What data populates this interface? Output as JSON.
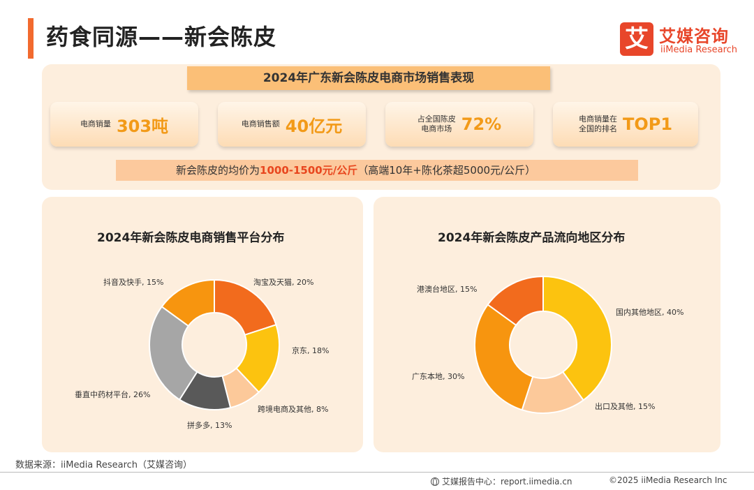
{
  "page": {
    "title": "药食同源——新会陈皮"
  },
  "logo": {
    "mark": "艾",
    "name_cn": "艾媒咨询",
    "name_en": "iiMedia Research"
  },
  "summary": {
    "ribbon": "2024年广东新会陈皮电商市场销售表现",
    "stats": [
      {
        "label": "电商销量",
        "value": "303吨"
      },
      {
        "label": "电商销售额",
        "value": "40亿元"
      },
      {
        "label_line1": "占全国陈皮",
        "label_line2": "电商市场",
        "value": "72%"
      },
      {
        "label_line1": "电商销量在",
        "label_line2": "全国的排名",
        "value": "TOP1"
      }
    ],
    "price_prefix": "新会陈皮的均价为",
    "price_highlight": "1000-1500元/公斤",
    "price_suffix": "（高端10年+陈化茶超5000元/公斤）"
  },
  "chart_data": [
    {
      "type": "pie",
      "style": "donut",
      "title": "2024年新会陈皮电商销售平台分布",
      "categories": [
        "淘宝及天猫",
        "京东",
        "跨境电商及其他",
        "拼多多",
        "垂直中药材平台",
        "抖音及快手"
      ],
      "values": [
        20,
        18,
        8,
        13,
        26,
        15
      ],
      "labels": [
        "淘宝及天猫, 20%",
        "京东, 18%",
        "跨境电商及其他, 8%",
        "拼多多, 13%",
        "垂直中药材平台, 26%",
        "抖音及快手, 15%"
      ],
      "colors": [
        "#f26b1d",
        "#fcc30f",
        "#fcc99a",
        "#595959",
        "#a6a6a6",
        "#f7950f"
      ],
      "unit": "%"
    },
    {
      "type": "pie",
      "style": "donut",
      "title": "2024年新会陈皮产品流向地区分布",
      "categories": [
        "国内其他地区",
        "出口及其他",
        "广东本地",
        "港澳台地区"
      ],
      "values": [
        40,
        15,
        30,
        15
      ],
      "labels": [
        "国内其他地区, 40%",
        "出口及其他, 15%",
        "广东本地, 30%",
        "港澳台地区, 15%"
      ],
      "colors": [
        "#fcc30f",
        "#fcc99a",
        "#f7950f",
        "#f26b1d"
      ],
      "unit": "%"
    }
  ],
  "footer": {
    "source": "数据来源：iiMedia Research（艾媒咨询）",
    "report_center": "艾媒报告中心：report.iimedia.cn",
    "copyright": "©2025  iiMedia Research  Inc"
  }
}
